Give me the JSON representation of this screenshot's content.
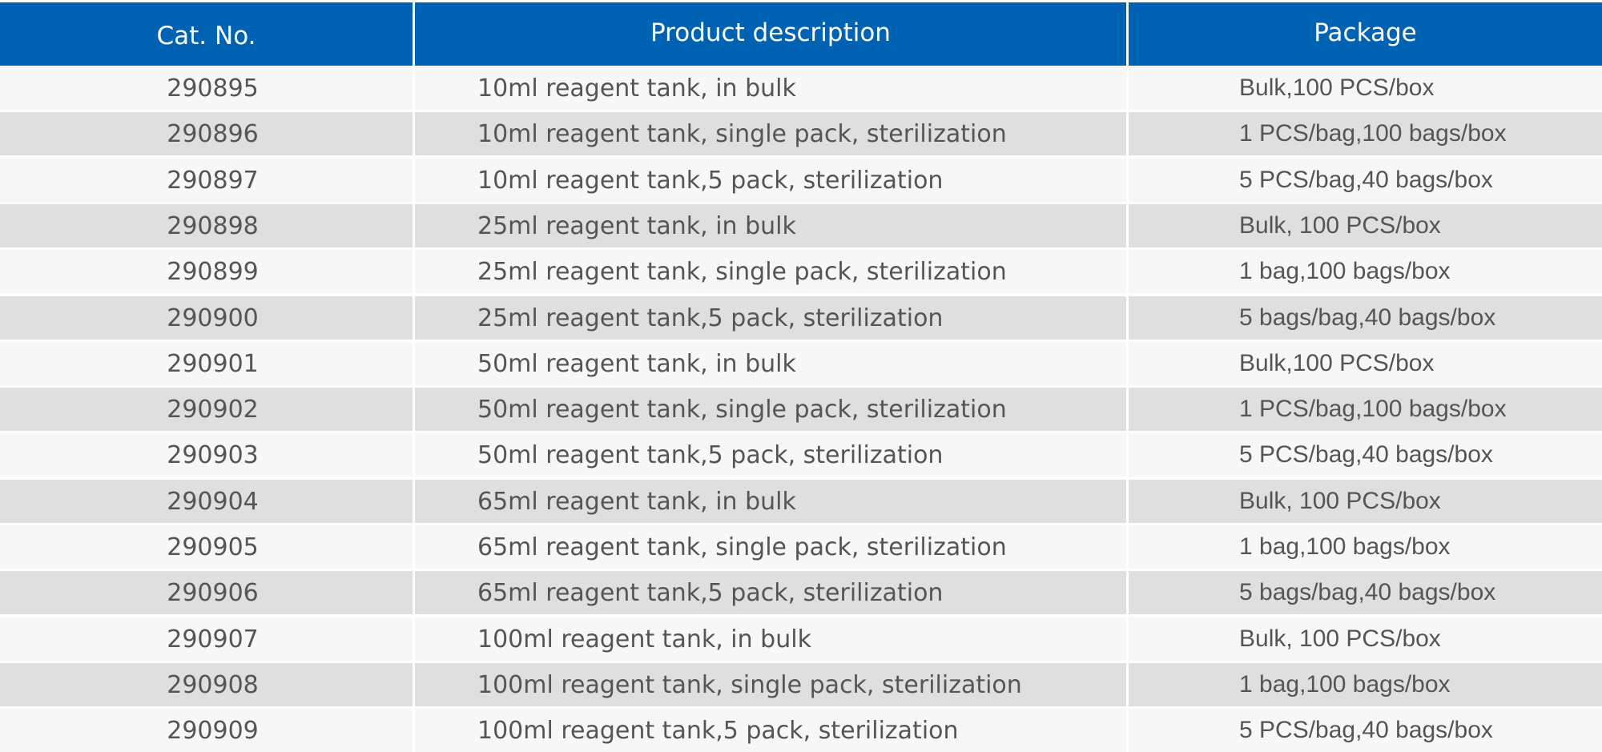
{
  "table": {
    "columns": [
      "Cat. No.",
      "Product description",
      "Package"
    ],
    "rows": [
      [
        "290895",
        "10ml reagent tank, in bulk",
        "Bulk,100 PCS/box"
      ],
      [
        "290896",
        "10ml reagent tank, single pack, sterilization",
        "1 PCS/bag,100 bags/box"
      ],
      [
        "290897",
        "10ml reagent tank,5 pack, sterilization",
        "5 PCS/bag,40 bags/box"
      ],
      [
        "290898",
        "25ml reagent tank, in bulk",
        "Bulk, 100 PCS/box"
      ],
      [
        "290899",
        "25ml reagent tank, single pack, sterilization",
        "1 bag,100 bags/box"
      ],
      [
        "290900",
        "25ml reagent tank,5 pack, sterilization",
        "5 bags/bag,40 bags/box"
      ],
      [
        "290901",
        "50ml reagent tank, in bulk",
        "Bulk,100 PCS/box"
      ],
      [
        "290902",
        "50ml reagent tank, single pack, sterilization",
        "1 PCS/bag,100 bags/box"
      ],
      [
        "290903",
        "50ml reagent tank,5 pack, sterilization",
        "5 PCS/bag,40 bags/box"
      ],
      [
        "290904",
        "65ml reagent tank, in bulk",
        "Bulk, 100 PCS/box"
      ],
      [
        "290905",
        "65ml reagent tank, single pack, sterilization",
        "1 bag,100 bags/box"
      ],
      [
        "290906",
        "65ml reagent tank,5 pack, sterilization",
        "5 bags/bag,40 bags/box"
      ],
      [
        "290907",
        "100ml reagent tank, in bulk",
        "Bulk, 100 PCS/box"
      ],
      [
        "290908",
        "100ml reagent tank, single pack, sterilization",
        "1 bag,100 bags/box"
      ],
      [
        "290909",
        "100ml reagent tank,5 pack, sterilization",
        "5 PCS/bag,40 bags/box"
      ]
    ]
  },
  "colors": {
    "header_bg": "#0062b3",
    "header_text": "#ffffff",
    "row_light": "#f7f7f7",
    "row_dark": "#dedfde",
    "body_text": "#555555"
  }
}
